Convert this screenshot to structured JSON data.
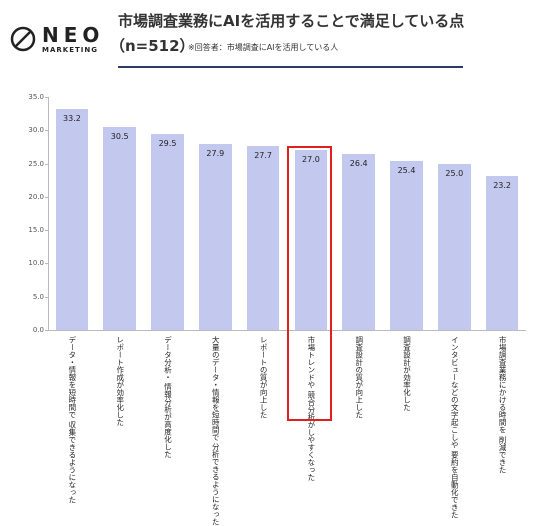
{
  "header": {
    "logo": "NEO",
    "logo_sub": "MARKETING"
  },
  "chart_data": {
    "type": "bar",
    "title": "市場調査業務にAIを活用することで満足している点",
    "subtitle": "（n=512）",
    "note": "※回答者：市場調査にAIを活用している人",
    "categories": [
      [
        "データ・情報を短時間で",
        "収集できるようになった"
      ],
      [
        "レポート作成が効率化した"
      ],
      [
        "データ分析・",
        "情報分析が高度化した"
      ],
      [
        "大量のデータ・情報を短時間で",
        "分析できるようになった"
      ],
      [
        "レポートの質が向上した"
      ],
      [
        "市場トレンドや",
        "競合分析がしやすくなった"
      ],
      [
        "調査設計の質が向上した"
      ],
      [
        "調査設計が効率化した"
      ],
      [
        "インタビューなどの文字起こしや",
        "要約を自動化できた"
      ],
      [
        "市場調査業務にかける時間を",
        "削減できた"
      ]
    ],
    "values": [
      33.2,
      30.5,
      29.5,
      27.9,
      27.7,
      27.0,
      26.4,
      25.4,
      25.0,
      23.2
    ],
    "value_labels": [
      "33.2",
      "30.5",
      "29.5",
      "27.9",
      "27.7",
      "27.0",
      "26.4",
      "25.4",
      "25.0",
      "23.2"
    ],
    "color": "#c3c8ef",
    "highlight_color": "#e02020",
    "highlight": 5,
    "ylim": [
      0,
      35
    ],
    "yticks": [
      {
        "value": 0,
        "label": "0.0"
      },
      {
        "value": 5,
        "label": "5.0"
      },
      {
        "value": 10,
        "label": "10.0"
      },
      {
        "value": 15,
        "label": "15.0"
      },
      {
        "value": 20,
        "label": "20.0"
      },
      {
        "value": 25,
        "label": "25.0"
      },
      {
        "value": 30,
        "label": "30.0"
      },
      {
        "value": 35,
        "label": "35.0"
      }
    ]
  }
}
